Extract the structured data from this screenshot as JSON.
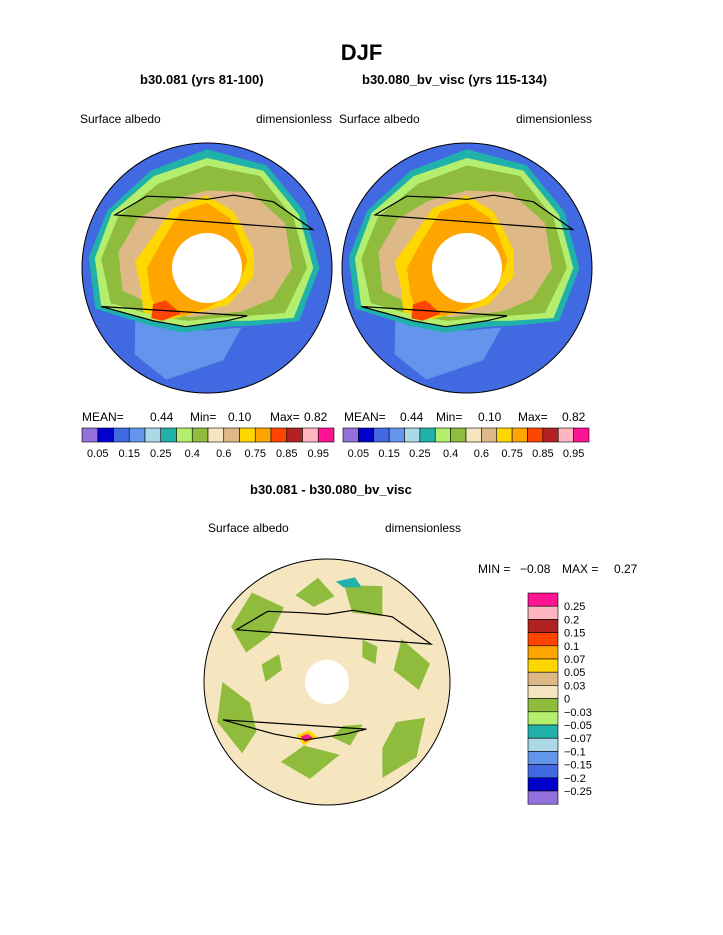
{
  "page": {
    "title": "DJF"
  },
  "panels": [
    {
      "case_title": "b30.081 (yrs 81-100)",
      "variable_label": "Surface albedo",
      "units_label": "dimensionless",
      "stats": {
        "mean_label": "MEAN=",
        "mean": "0.44",
        "min_label": "Min=",
        "min": "0.10",
        "max_label": "Max=",
        "max": "0.82"
      }
    },
    {
      "case_title": "b30.080_bv_visc (yrs 115-134)",
      "variable_label": "Surface albedo",
      "units_label": "dimensionless",
      "stats": {
        "mean_label": "MEAN=",
        "mean": "0.44",
        "min_label": "Min=",
        "min": "0.10",
        "max_label": "Max=",
        "max": "0.82"
      }
    }
  ],
  "abs_colorbar": {
    "colors": [
      "#9370db",
      "#0000cd",
      "#4169e1",
      "#6495ed",
      "#add8e6",
      "#20b2aa",
      "#b4ee6e",
      "#8fbc3c",
      "#f5e6c0",
      "#deb887",
      "#ffd700",
      "#ffa500",
      "#ff4500",
      "#b22222",
      "#ffb6c1",
      "#ff1493"
    ],
    "tick_labels": [
      "0.05",
      "0.15",
      "0.25",
      "0.4",
      "0.6",
      "0.75",
      "0.85",
      "0.95"
    ]
  },
  "diff_panel": {
    "title": "b30.081 - b30.080_bv_visc",
    "variable_label": "Surface albedo",
    "units_label": "dimensionless",
    "stats": {
      "min_label": "MIN =",
      "min": "−0.08",
      "max_label": "MAX =",
      "max": "0.27"
    }
  },
  "diff_colorbar": {
    "colors": [
      "#ff1493",
      "#ffb6c1",
      "#b22222",
      "#ff4500",
      "#ffa500",
      "#ffd700",
      "#deb887",
      "#f5e6c0",
      "#8fbc3c",
      "#b4ee6e",
      "#20b2aa",
      "#add8e6",
      "#6495ed",
      "#4169e1",
      "#0000cd",
      "#9370db"
    ],
    "tick_labels": [
      "0.25",
      "0.2",
      "0.15",
      "0.1",
      "0.07",
      "0.05",
      "0.03",
      "0",
      "−0.03",
      "−0.05",
      "−0.07",
      "−0.1",
      "−0.15",
      "−0.2",
      "−0.25"
    ]
  },
  "map_colors": {
    "ocean_blue": "#4169e1",
    "ocean_light": "#6495ed",
    "teal": "#20b2aa",
    "light_green": "#b4ee6e",
    "green": "#8fbc3c",
    "tan": "#deb887",
    "cream": "#f5e6c0",
    "yellow": "#ffd700",
    "orange": "#ffa500",
    "red_orange": "#ff4500",
    "pink": "#ffb6c1",
    "magenta": "#ff1493"
  }
}
